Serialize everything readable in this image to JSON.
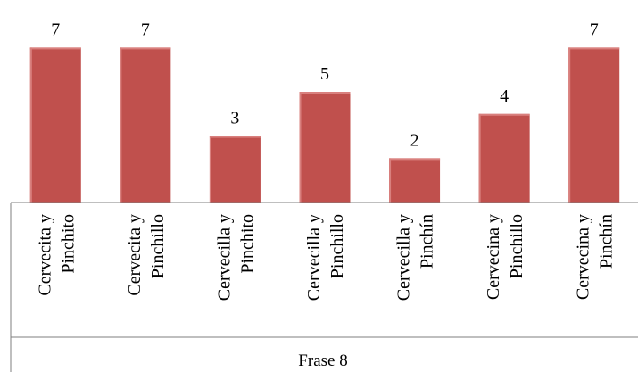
{
  "chart_data": {
    "type": "bar",
    "categories": [
      [
        "Cervecita y",
        "Pinchito"
      ],
      [
        "Cervecita y",
        "Pinchillo"
      ],
      [
        "Cervecilla y",
        "Pinchito"
      ],
      [
        "Cervecilla y",
        "Pinchillo"
      ],
      [
        "Cervecilla y",
        "Pinchín"
      ],
      [
        "Cervecina y",
        "Pinchillo"
      ],
      [
        "Cervecina y",
        "Pinchín"
      ]
    ],
    "values": [
      7,
      7,
      3,
      5,
      2,
      4,
      7
    ],
    "value_labels": [
      "7",
      "7",
      "3",
      "5",
      "2",
      "4",
      "7"
    ],
    "group_label": "Frase 8",
    "ylim": [
      0,
      8
    ],
    "bar_color": "#c0504d",
    "grid": false,
    "legend": "none"
  }
}
